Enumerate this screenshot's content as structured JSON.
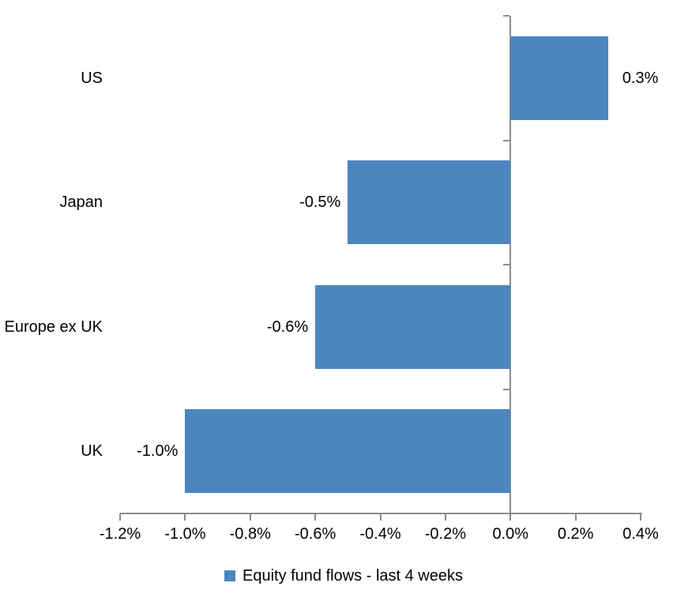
{
  "chart_data": {
    "type": "bar",
    "orientation": "horizontal",
    "title": "",
    "categories": [
      "US",
      "Japan",
      "Europe ex UK",
      "UK"
    ],
    "values": [
      0.3,
      -0.5,
      -0.6,
      -1.0
    ],
    "value_labels": [
      "0.3%",
      "-0.5%",
      "-0.6%",
      "-1.0%"
    ],
    "series_name": "Equity fund flows - last 4 weeks",
    "xlim": [
      -1.2,
      0.4
    ],
    "x_tick_step": 0.2,
    "x_tick_labels": [
      "-1.2%",
      "-1.0%",
      "-0.8%",
      "-0.6%",
      "-0.4%",
      "-0.2%",
      "0.0%",
      "0.2%",
      "0.4%"
    ],
    "grid": false,
    "legend_position": "bottom",
    "bar_color": "#4D86BE",
    "axis_color": "#8C8C8C",
    "text_color": "#000000"
  },
  "legend": {
    "label": "Equity fund flows - last 4 weeks",
    "swatch_color": "#4D86BE"
  }
}
